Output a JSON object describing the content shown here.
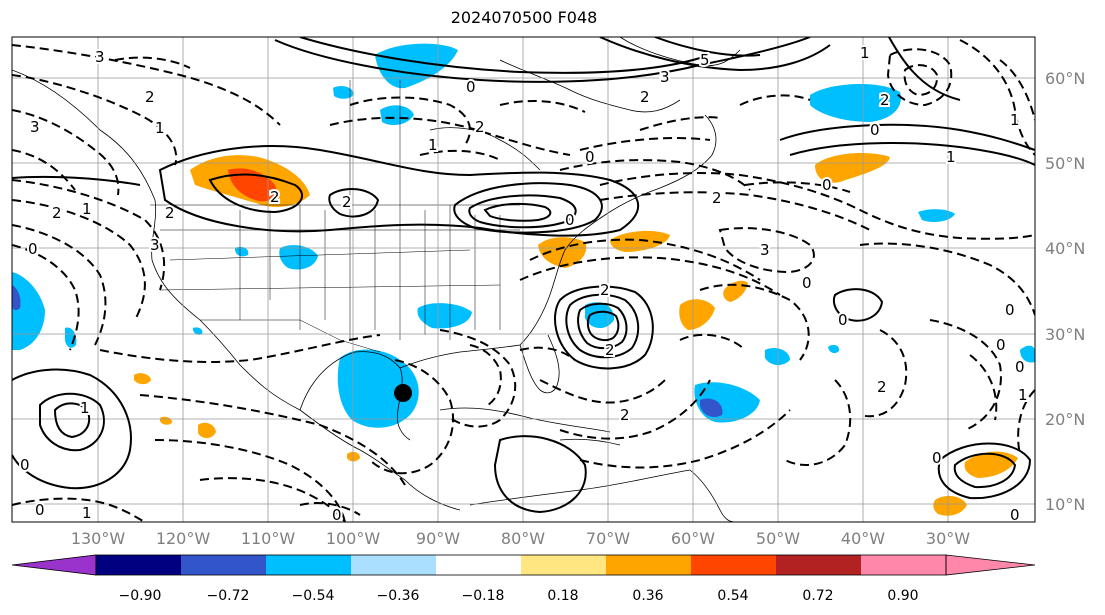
{
  "title": "2024070500 F048",
  "lon_labels": [
    "130°W",
    "120°W",
    "110°W",
    "100°W",
    "90°W",
    "80°W",
    "70°W",
    "60°W",
    "50°W",
    "40°W",
    "30°W"
  ],
  "lat_labels": [
    "60°N",
    "50°N",
    "40°N",
    "30°N",
    "20°N",
    "10°N"
  ],
  "colorbar": {
    "tick_labels": [
      "−0.90",
      "−0.72",
      "−0.54",
      "−0.36",
      "−0.18",
      "0.18",
      "0.36",
      "0.54",
      "0.72",
      "0.90"
    ],
    "colors": [
      "#9933cc",
      "#000080",
      "#3355cc",
      "#00bfff",
      "#aadfff",
      "#ffffff",
      "#ffe680",
      "#ffa500",
      "#ff4500",
      "#b22222",
      "#ff88aa"
    ]
  },
  "contour_labels": [
    "3",
    "2",
    "1",
    "3",
    "2",
    "1",
    "0",
    "1",
    "0",
    "2",
    "5",
    "3",
    "2",
    "1",
    "0",
    "2",
    "2",
    "2",
    "1",
    "0",
    "0",
    "3",
    "2",
    "2",
    "1",
    "0",
    "3",
    "0",
    "0",
    "1",
    "0",
    "2",
    "0",
    "2",
    "0",
    "0",
    "2",
    "2",
    "0",
    "1",
    "1",
    "0",
    "0",
    "0"
  ],
  "marker": "storm-center"
}
